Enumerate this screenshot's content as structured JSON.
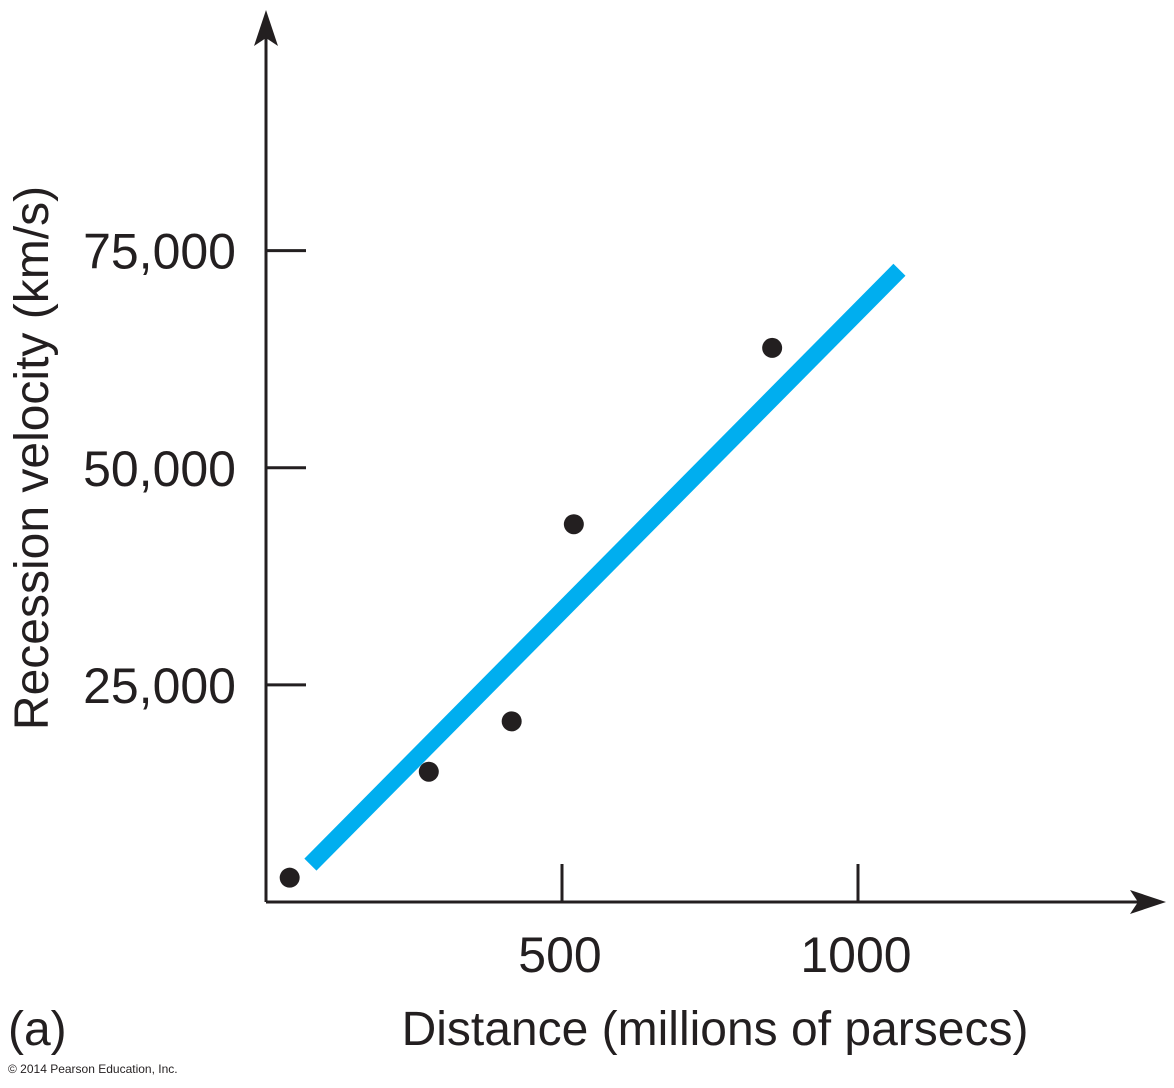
{
  "chart_data": {
    "type": "scatter",
    "xlabel": "Distance (millions of parsecs)",
    "ylabel": "Recession velocity (km/s)",
    "xlim": [
      0,
      1380
    ],
    "ylim": [
      0,
      100000
    ],
    "x_ticks": [
      {
        "value": 500,
        "label": "500"
      },
      {
        "value": 1000,
        "label": "1000"
      }
    ],
    "y_ticks": [
      {
        "value": 25000,
        "label": "25,000"
      },
      {
        "value": 50000,
        "label": "50,000"
      },
      {
        "value": 75000,
        "label": "75,000"
      }
    ],
    "points": [
      {
        "x": 40,
        "y": 2800
      },
      {
        "x": 275,
        "y": 15000
      },
      {
        "x": 415,
        "y": 20800
      },
      {
        "x": 520,
        "y": 43500
      },
      {
        "x": 855,
        "y": 63800
      }
    ],
    "fit_line": {
      "x": [
        75,
        1070
      ],
      "y": [
        4300,
        72800
      ],
      "color": "#00aeef"
    },
    "grid": false,
    "point_color": "#231f20",
    "axis_color": "#231f20"
  },
  "panel_label": "(a)",
  "copyright": "© 2014 Pearson Education, Inc."
}
